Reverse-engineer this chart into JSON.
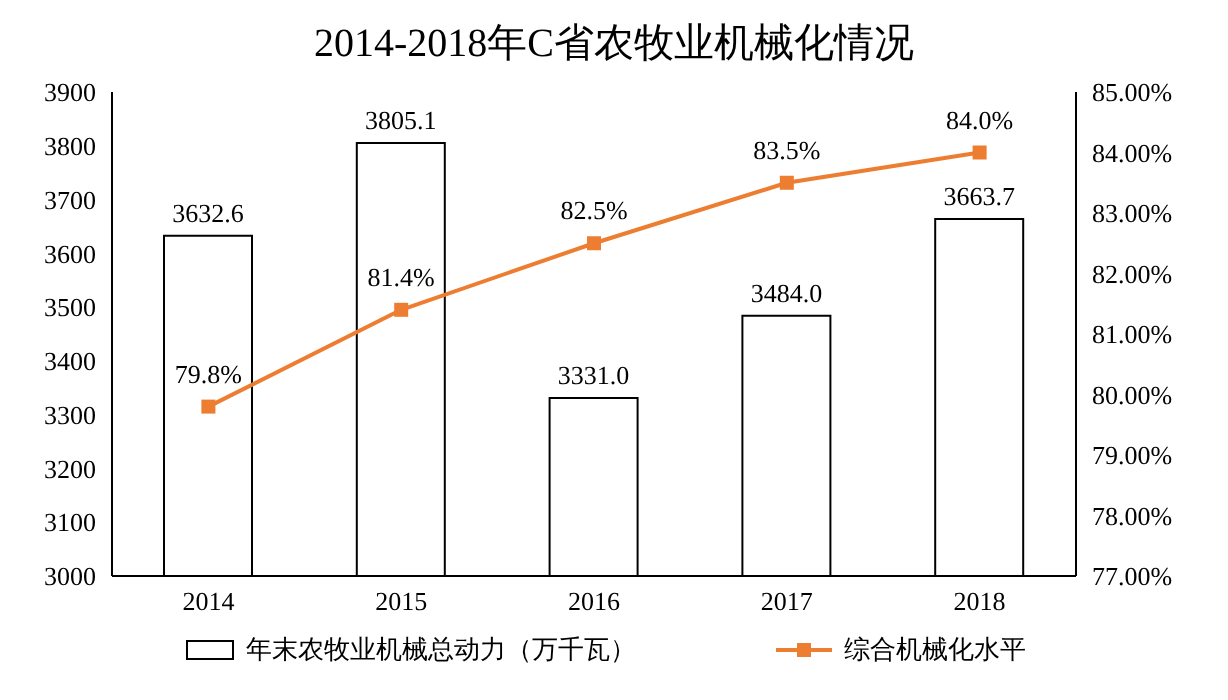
{
  "chart_data": {
    "type": "bar",
    "title": "2014-2018年C省农牧业机械化情况",
    "categories": [
      "2014",
      "2015",
      "2016",
      "2017",
      "2018"
    ],
    "series": [
      {
        "name": "年末农牧业机械总动力（万千瓦）",
        "color": "#ffffff",
        "values": [
          3632.6,
          3805.1,
          3331.0,
          3484.0,
          3663.7
        ],
        "value_labels": [
          "3632.6",
          "3805.1",
          "3331.0",
          "3484.0",
          "3663.7"
        ]
      },
      {
        "name": "综合机械化水平",
        "type": "line",
        "axis": "y2",
        "color": "#ed7d31",
        "values": [
          79.8,
          81.4,
          82.5,
          83.5,
          84.0
        ],
        "value_labels": [
          "79.8%",
          "81.4%",
          "82.5%",
          "83.5%",
          "84.0%"
        ]
      }
    ],
    "ylim": [
      3000,
      3900
    ],
    "yticks": [
      3000,
      3100,
      3200,
      3300,
      3400,
      3500,
      3600,
      3700,
      3800,
      3900
    ],
    "y2lim": [
      77,
      85
    ],
    "y2ticks": [
      {
        "value": 77,
        "label": "77.00%"
      },
      {
        "value": 78,
        "label": "78.00%"
      },
      {
        "value": 79,
        "label": "79.00%"
      },
      {
        "value": 80,
        "label": "80.00%"
      },
      {
        "value": 81,
        "label": "81.00%"
      },
      {
        "value": 82,
        "label": "82.00%"
      },
      {
        "value": 83,
        "label": "83.00%"
      },
      {
        "value": 84,
        "label": "84.00%"
      },
      {
        "value": 85,
        "label": "85.00%"
      }
    ],
    "legend": "bottom",
    "marker": "square",
    "grid": false
  }
}
